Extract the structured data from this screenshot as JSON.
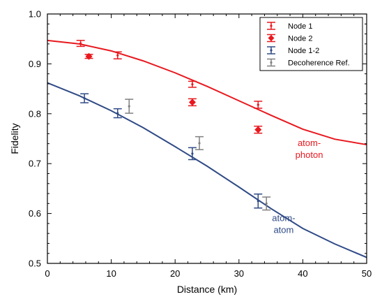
{
  "chart_data": {
    "type": "scatter",
    "title": "",
    "xlabel": "Distance (km)",
    "ylabel": "Fidelity",
    "xlim": [
      0,
      50
    ],
    "ylim": [
      0.5,
      1.0
    ],
    "xticks": [
      0,
      10,
      20,
      30,
      40,
      50
    ],
    "yticks": [
      0.5,
      0.6,
      0.7,
      0.8,
      0.9,
      1.0
    ],
    "xtick_labels": [
      "0",
      "10",
      "20",
      "30",
      "40",
      "50"
    ],
    "ytick_labels": [
      "0.5",
      "0.6",
      "0.7",
      "0.8",
      "0.9",
      "1.0"
    ],
    "grid": false,
    "legend_position": "top-right",
    "colors": {
      "red": "#e8181e",
      "blue": "#2f4a86",
      "gray": "#808080"
    },
    "series": [
      {
        "name": "Node 1",
        "marker": "dot",
        "color": "#e8181e",
        "points": [
          {
            "x": 5.2,
            "y": 0.941,
            "err": 0.006
          },
          {
            "x": 11.0,
            "y": 0.917,
            "err": 0.007
          },
          {
            "x": 22.7,
            "y": 0.859,
            "err": 0.006
          },
          {
            "x": 33.0,
            "y": 0.818,
            "err": 0.007
          }
        ]
      },
      {
        "name": "Node 2",
        "marker": "diamond",
        "color": "#e8181e",
        "points": [
          {
            "x": 6.5,
            "y": 0.915,
            "err": 0.004
          },
          {
            "x": 22.7,
            "y": 0.823,
            "err": 0.007
          },
          {
            "x": 33.0,
            "y": 0.768,
            "err": 0.007
          }
        ]
      },
      {
        "name": "Node 1-2",
        "marker": "dot",
        "color": "#2f4a86",
        "points": [
          {
            "x": 5.8,
            "y": 0.831,
            "err": 0.009
          },
          {
            "x": 11.0,
            "y": 0.801,
            "err": 0.009
          },
          {
            "x": 22.7,
            "y": 0.72,
            "err": 0.012
          },
          {
            "x": 33.0,
            "y": 0.625,
            "err": 0.014
          }
        ]
      },
      {
        "name": "Decoherence Ref.",
        "marker": "dot",
        "color": "#808080",
        "points": [
          {
            "x": 12.8,
            "y": 0.815,
            "err": 0.014
          },
          {
            "x": 23.8,
            "y": 0.741,
            "err": 0.013
          },
          {
            "x": 34.3,
            "y": 0.62,
            "err": 0.013
          }
        ]
      }
    ],
    "curves": [
      {
        "label": "atom-photon",
        "color": "#e8181e",
        "points": [
          [
            0,
            0.947
          ],
          [
            5,
            0.94
          ],
          [
            10,
            0.926
          ],
          [
            15,
            0.906
          ],
          [
            20,
            0.882
          ],
          [
            25,
            0.855
          ],
          [
            30,
            0.826
          ],
          [
            35,
            0.797
          ],
          [
            40,
            0.769
          ],
          [
            45,
            0.749
          ],
          [
            50,
            0.738
          ]
        ]
      },
      {
        "label": "atom-atom",
        "color": "#2f4a86",
        "points": [
          [
            0,
            0.862
          ],
          [
            5,
            0.836
          ],
          [
            10,
            0.806
          ],
          [
            15,
            0.772
          ],
          [
            20,
            0.734
          ],
          [
            25,
            0.695
          ],
          [
            30,
            0.653
          ],
          [
            35,
            0.61
          ],
          [
            40,
            0.57
          ],
          [
            45,
            0.539
          ],
          [
            50,
            0.512
          ]
        ]
      }
    ],
    "annotations": [
      {
        "lines": [
          "atom-",
          "photon"
        ],
        "color": "#e8181e",
        "x": 41.0,
        "y": 0.735
      },
      {
        "lines": [
          "atom-",
          "atom"
        ],
        "color": "#2f4a86",
        "x": 37.0,
        "y": 0.585
      }
    ]
  }
}
